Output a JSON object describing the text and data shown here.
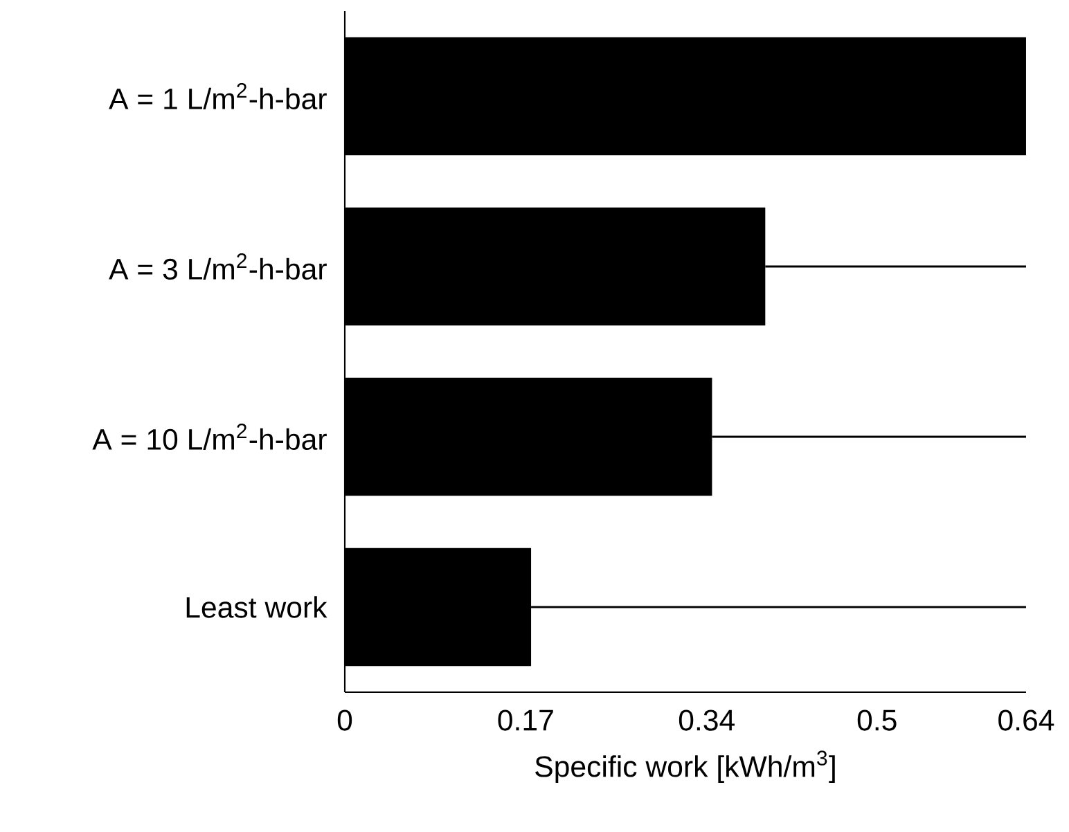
{
  "chart_data": {
    "type": "bar",
    "orientation": "horizontal",
    "xlabel": "Specific work [kWh/m$^{3}$]",
    "categories": [
      "A = 1 L/m$^{2}$-h-bar",
      "A = 3 L/m$^{2}$-h-bar",
      "A = 10 L/m$^{2}$-h-bar",
      "Least work"
    ],
    "values": [
      0.64,
      0.395,
      0.345,
      0.175
    ],
    "errors": [
      null,
      [
        0.395,
        0.64
      ],
      [
        0.345,
        0.64
      ],
      [
        0.175,
        0.64
      ]
    ],
    "color": "#000000",
    "xlim": [
      0,
      0.64
    ],
    "xticks": [
      0,
      0.17,
      0.34,
      0.5,
      0.64
    ]
  }
}
